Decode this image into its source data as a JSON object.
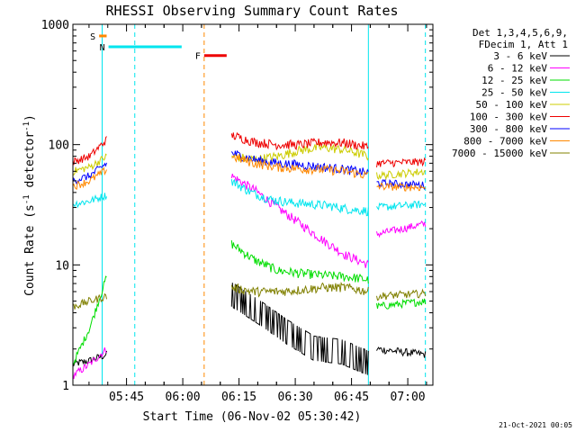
{
  "chart_data": {
    "type": "line",
    "title": "RHESSI Observing Summary Count Rates",
    "xlabel": "Start Time (06-Nov-02 05:30:42)",
    "ylabel_parts": [
      "Count Rate (s",
      "-1",
      " detector",
      "-1",
      ")"
    ],
    "yscale": "log",
    "ylim": [
      1,
      1000
    ],
    "y_ticks": [
      "1",
      "10",
      "100",
      "1000"
    ],
    "x_ticks": [
      "05:45",
      "06:00",
      "06:15",
      "06:30",
      "06:45",
      "07:00"
    ],
    "x_tick_minutes": [
      14.3,
      29.3,
      44.3,
      59.3,
      74.3,
      89.3
    ],
    "xlim_minutes": [
      0,
      96
    ],
    "data_gap_minutes": [
      9.0,
      42.3
    ],
    "legend_header": [
      "Det 1,3,4,5,6,9,",
      "FDecim 1, Att 1"
    ],
    "series": [
      {
        "name": "3 - 6 keV",
        "color": "#000000",
        "before": [
          1.5,
          1.6,
          1.8
        ],
        "after": [
          4.5,
          3.2,
          2.2,
          1.6,
          1.5,
          1.2
        ]
      },
      {
        "name": "6 - 12 keV",
        "color": "#ff00ff",
        "before": [
          1.2,
          1.5,
          2.0
        ],
        "after": [
          55,
          42,
          30,
          22,
          16,
          12,
          10
        ]
      },
      {
        "name": "12 - 25 keV",
        "color": "#00dd00",
        "before": [
          1.5,
          3.0,
          8.0
        ],
        "after": [
          15,
          11,
          9,
          8.5,
          8.2,
          8.0,
          7.5
        ]
      },
      {
        "name": "25 - 50 keV",
        "color": "#00e5ee",
        "before": [
          32,
          34,
          38
        ],
        "after": [
          50,
          40,
          35,
          33,
          32,
          31,
          29,
          28
        ]
      },
      {
        "name": "50 - 100 keV",
        "color": "#cccc00",
        "before": [
          60,
          65,
          80
        ],
        "after": [
          80,
          75,
          80,
          90,
          95,
          90,
          80
        ]
      },
      {
        "name": "100 - 300 keV",
        "color": "#ee0000",
        "before": [
          72,
          80,
          110
        ],
        "after": [
          120,
          105,
          100,
          100,
          105,
          103,
          95
        ]
      },
      {
        "name": "300 - 800 keV",
        "color": "#0000ff",
        "before": [
          50,
          55,
          70
        ],
        "after": [
          85,
          75,
          70,
          68,
          65,
          62,
          58
        ]
      },
      {
        "name": "800 - 7000 keV",
        "color": "#ff8800",
        "before": [
          45,
          50,
          62
        ],
        "after": [
          80,
          70,
          65,
          63,
          62,
          60,
          55
        ]
      },
      {
        "name": "7000 - 15000 keV",
        "color": "#808000",
        "before": [
          4.5,
          5.0,
          5.5
        ],
        "after": [
          6.5,
          6.0,
          6.0,
          6.2,
          6.5,
          6.5,
          6.0
        ]
      }
    ],
    "after_gap": {
      "black": [
        2.0,
        1.8
      ],
      "magenta": [
        18,
        22
      ],
      "green": [
        4.5,
        5
      ],
      "cyan": [
        30,
        32
      ],
      "yellow": [
        55,
        60
      ],
      "red": [
        70,
        72
      ],
      "blue": [
        48,
        46
      ],
      "orange": [
        45,
        44
      ],
      "olive": [
        5.5,
        5.8
      ]
    },
    "flags": [
      {
        "label": "S",
        "color": "#ff8800",
        "level": 800,
        "x_start": 7,
        "x_end": 9
      },
      {
        "label": "N",
        "color": "#00e5ee",
        "level": 650,
        "x_start": 9.5,
        "x_end": 29
      },
      {
        "label": "F",
        "color": "#ee0000",
        "level": 550,
        "x_start": 35,
        "x_end": 41
      }
    ],
    "stamp": "21-Oct-2021 00:05"
  }
}
